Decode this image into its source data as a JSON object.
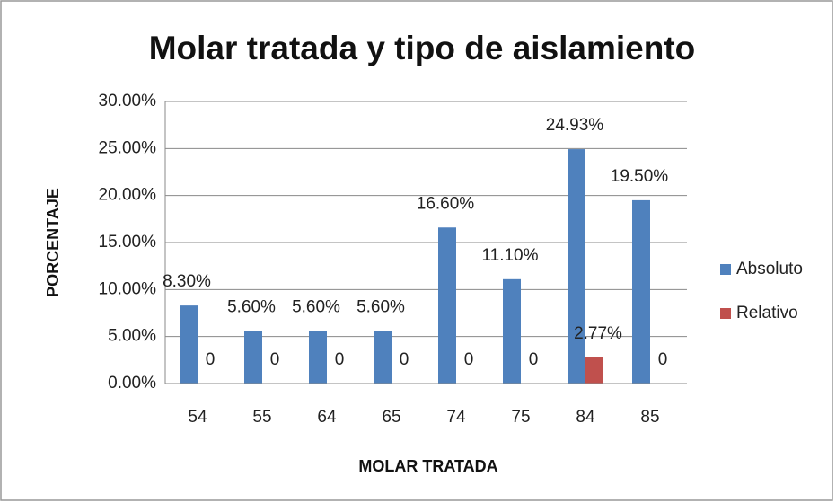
{
  "chart_data": {
    "type": "bar",
    "title": "Molar tratada y tipo de aislamiento",
    "x_label": "MOLAR TRATADA",
    "y_label": "PORCENTAJE",
    "categories": [
      "54",
      "55",
      "64",
      "65",
      "74",
      "75",
      "84",
      "85"
    ],
    "series": [
      {
        "name": "Absoluto",
        "color": "#4f81bd",
        "values": [
          8.3,
          5.6,
          5.6,
          5.6,
          16.6,
          11.1,
          24.93,
          19.5
        ],
        "value_labels": [
          "8.30%",
          "5.60%",
          "5.60%",
          "5.60%",
          "16.60%",
          "11.10%",
          "24.93%",
          "19.50%"
        ]
      },
      {
        "name": "Relativo",
        "color": "#c0504d",
        "values": [
          0,
          0,
          0,
          0,
          0,
          0,
          2.77,
          0
        ],
        "value_labels": [
          "0",
          "0",
          "0",
          "0",
          "0",
          "0",
          "2.77%",
          "0"
        ]
      }
    ],
    "ylim": [
      0,
      30
    ],
    "yticks": [
      {
        "value": 0,
        "label": "0.00%"
      },
      {
        "value": 5,
        "label": "5.00%"
      },
      {
        "value": 10,
        "label": "10.00%"
      },
      {
        "value": 15,
        "label": "15.00%"
      },
      {
        "value": 20,
        "label": "20.00%"
      },
      {
        "value": 25,
        "label": "25.00%"
      },
      {
        "value": 30,
        "label": "30.00%"
      }
    ],
    "grid": true,
    "legend": "right"
  }
}
